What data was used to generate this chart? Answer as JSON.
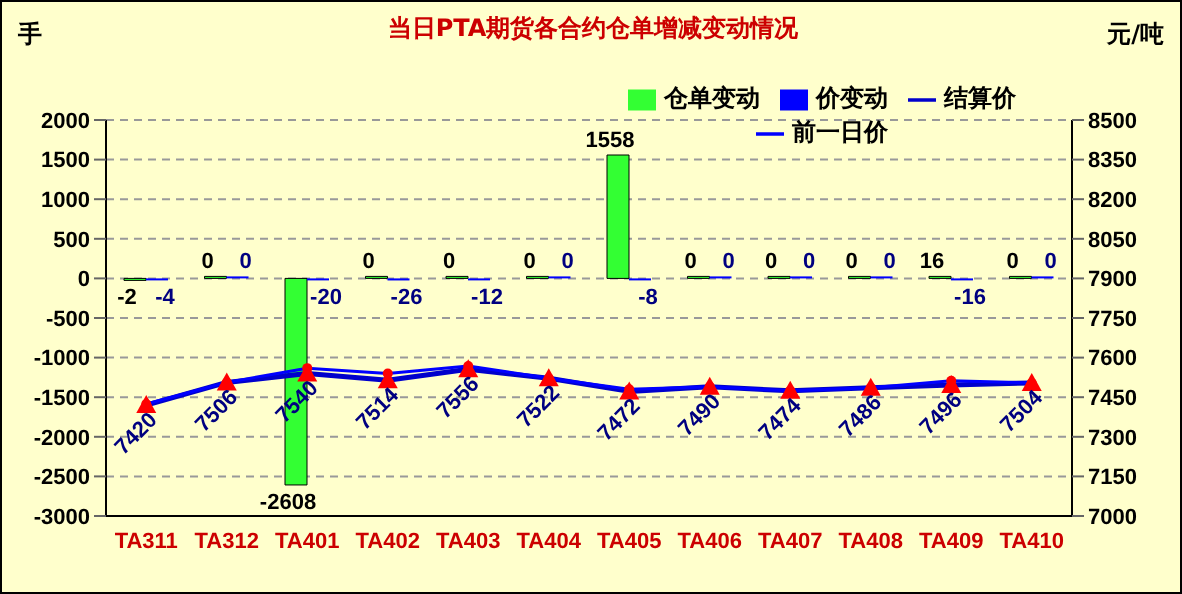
{
  "chart_data": {
    "type": "bar",
    "title": "当日PTA期货各合约仓单增减变动情况",
    "ylabel": "手",
    "y2label": "元/吨",
    "categories": [
      "TA311",
      "TA312",
      "TA401",
      "TA402",
      "TA403",
      "TA404",
      "TA405",
      "TA406",
      "TA407",
      "TA408",
      "TA409",
      "TA410"
    ],
    "series": [
      {
        "name": "仓单变动",
        "color": "#33ff33",
        "values": [
          -2,
          0,
          -2608,
          0,
          0,
          0,
          1558,
          0,
          0,
          0,
          16,
          0
        ]
      },
      {
        "name": "价变动",
        "color": "#0000ff",
        "values": [
          -4,
          0,
          -20,
          -26,
          -12,
          0,
          -8,
          0,
          0,
          0,
          -16,
          0
        ]
      },
      {
        "name": "结算价",
        "type": "line",
        "axis": "y2",
        "color": "#0000cc",
        "marker": "triangle",
        "values": [
          7420,
          7506,
          7540,
          7514,
          7556,
          7522,
          7472,
          7490,
          7474,
          7486,
          7496,
          7504
        ]
      },
      {
        "name": "前一日价",
        "type": "line",
        "axis": "y2",
        "color": "#0000ff",
        "marker": "circle",
        "data_labels": false,
        "values": [
          7424,
          7506,
          7560,
          7540,
          7568,
          7522,
          7480,
          7490,
          7474,
          7486,
          7512,
          7504
        ]
      }
    ],
    "ylim": [
      -3000,
      2000
    ],
    "yticks": [
      -3000,
      -2500,
      -2000,
      -1500,
      -1000,
      -500,
      0,
      500,
      1000,
      1500,
      2000
    ],
    "y2lim": [
      7000,
      8500
    ],
    "y2ticks": [
      7000,
      7150,
      7300,
      7450,
      7600,
      7750,
      7900,
      8050,
      8200,
      8350,
      8500
    ],
    "grid": "y",
    "legend": "top right",
    "data_labels": true
  }
}
